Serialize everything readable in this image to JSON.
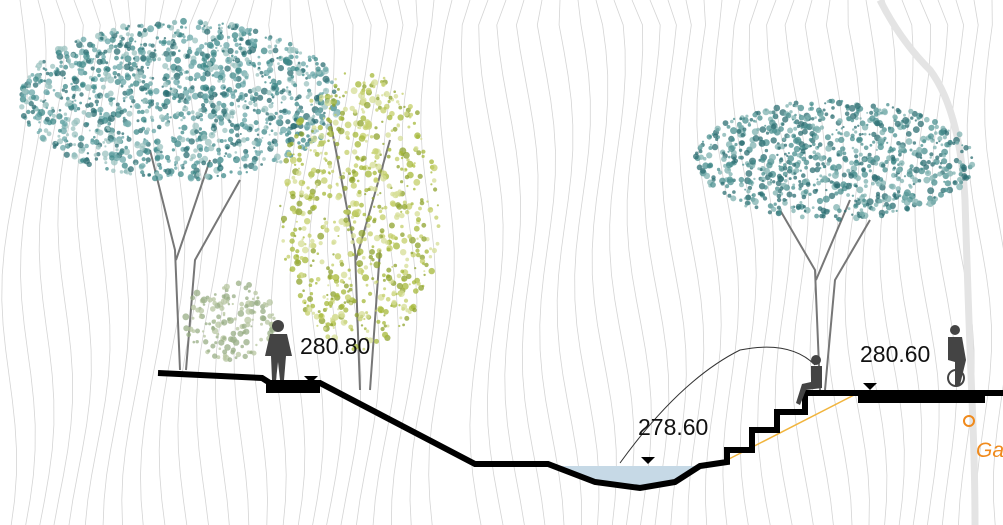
{
  "elevations": [
    "280.80",
    "278.60",
    "280.60"
  ],
  "annotation": "Ga"
}
